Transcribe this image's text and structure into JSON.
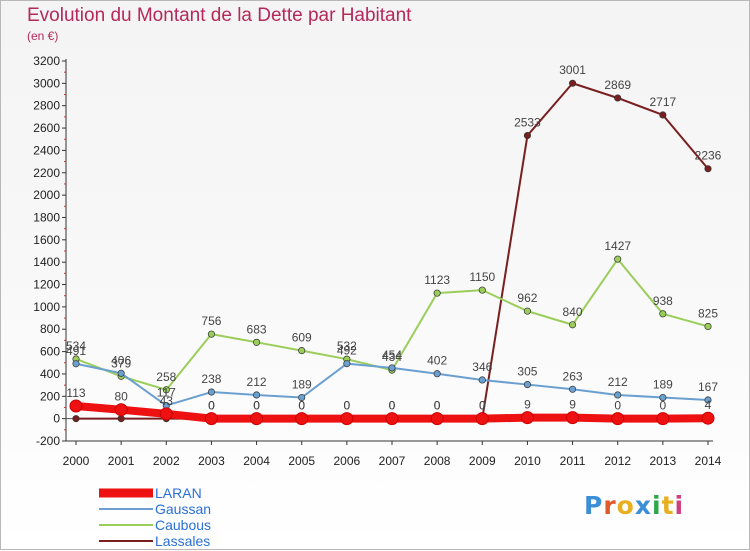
{
  "header": {
    "title": "Evolution du Montant de la Dette par Habitant",
    "subtitle": "(en €)"
  },
  "logo": {
    "text": "Proxiti",
    "colors": [
      "#3a8fd6",
      "#e05a2a",
      "#e8b020",
      "#3a8fd6",
      "#2aa84a",
      "#e8b020",
      "#d04080"
    ]
  },
  "chart_data": {
    "type": "line",
    "title": "Evolution du Montant de la Dette par Habitant",
    "ylabel": "(en €)",
    "xlabel": "",
    "x": [
      "2000",
      "2001",
      "2002",
      "2003",
      "2004",
      "2005",
      "2006",
      "2007",
      "2008",
      "2009",
      "2010",
      "2011",
      "2012",
      "2013",
      "2014"
    ],
    "ylim": [
      -200,
      3200
    ],
    "yticks": [
      -200,
      0,
      200,
      400,
      600,
      800,
      1000,
      1200,
      1400,
      1600,
      1800,
      2000,
      2200,
      2400,
      2600,
      2800,
      3000,
      3200
    ],
    "legend_position": "bottom-left",
    "series": [
      {
        "name": "Lassales",
        "color": "#7a1f1f",
        "values": [
          0,
          0,
          0,
          0,
          0,
          0,
          0,
          0,
          0,
          0,
          2533,
          3001,
          2869,
          2717,
          2236
        ],
        "labels": [
          null,
          null,
          null,
          "0",
          "0",
          "0",
          "0",
          "0",
          "0",
          "0",
          "2533",
          "3001",
          "2869",
          "2717",
          "2236"
        ]
      },
      {
        "name": "Caubous",
        "color": "#9acd5a",
        "values": [
          534,
          379,
          258,
          756,
          683,
          609,
          532,
          434,
          1123,
          1150,
          962,
          840,
          1427,
          938,
          825
        ],
        "labels": [
          "534",
          "379",
          "258",
          "756",
          "683",
          "609",
          "532",
          "434",
          "1123",
          "1150",
          "962",
          "840",
          "1427",
          "938",
          "825"
        ]
      },
      {
        "name": "Gaussan",
        "color": "#6a9fd0",
        "values": [
          491,
          406,
          117,
          238,
          212,
          189,
          492,
          454,
          402,
          346,
          305,
          263,
          212,
          189,
          167
        ],
        "labels": [
          "491",
          "406",
          "117",
          "238",
          "212",
          "189",
          "492",
          "454",
          "402",
          "346",
          "305",
          "263",
          "212",
          "189",
          "167"
        ]
      },
      {
        "name": "LARAN",
        "color": "#ee1111",
        "values": [
          113,
          80,
          43,
          0,
          0,
          0,
          0,
          0,
          0,
          0,
          9,
          9,
          0,
          0,
          4
        ],
        "labels": [
          "113",
          "80",
          "43",
          "0",
          "0",
          "0",
          "0",
          "0",
          "0",
          "0",
          "9",
          "9",
          "0",
          "0",
          "4"
        ]
      }
    ],
    "legend": [
      {
        "name": "LARAN",
        "color": "#ee1111"
      },
      {
        "name": "Gaussan",
        "color": "#6a9fd0"
      },
      {
        "name": "Caubous",
        "color": "#9acd5a"
      },
      {
        "name": "Lassales",
        "color": "#7a1f1f"
      }
    ]
  }
}
